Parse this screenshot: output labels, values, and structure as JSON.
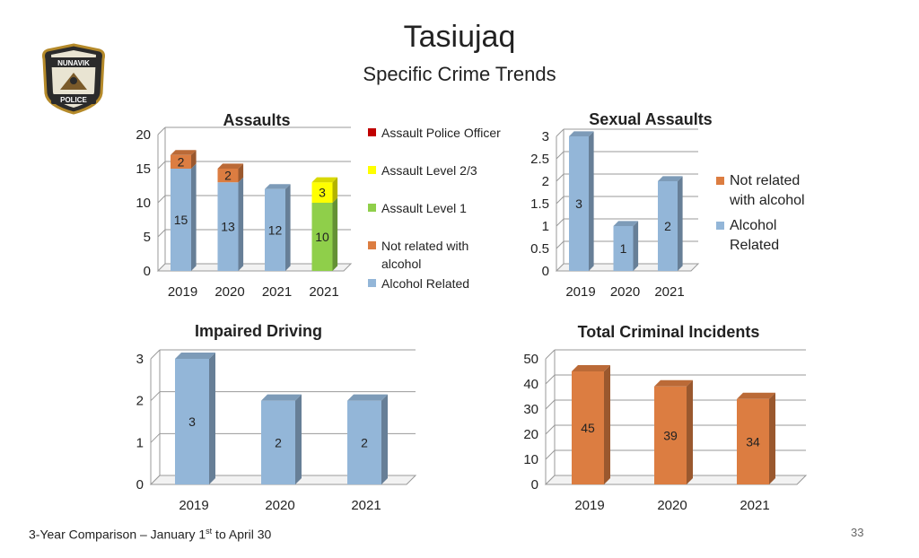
{
  "title": "Tasiujaq",
  "subtitle": "Specific Crime Trends",
  "footer": {
    "prefix": "3-Year Comparison – January 1",
    "sup": "st",
    "suffix": " to April 30"
  },
  "page_number": "33",
  "logo": {
    "top_text": "NUNAVIK",
    "bottom_text": "POLICE",
    "icon": "police-badge-icon"
  },
  "colors": {
    "alcohol_related": "#93B6D8",
    "not_related": "#DC7D41",
    "assault_level1": "#8FCF4A",
    "assault_level23": "#FFFF00",
    "assault_police": "#C00000"
  },
  "chart_data": [
    {
      "id": "assaults",
      "type": "bar",
      "stacked": true,
      "title": "Assaults",
      "categories": [
        "2019",
        "2020",
        "2021",
        "2021"
      ],
      "ylim": [
        0,
        20
      ],
      "yticks": [
        0,
        5,
        10,
        15,
        20
      ],
      "series": [
        {
          "name": "Alcohol Related",
          "color": "#93B6D8",
          "values": [
            15,
            13,
            12,
            0
          ]
        },
        {
          "name": "Not related with alcohol",
          "color": "#DC7D41",
          "values": [
            2,
            2,
            0,
            0
          ]
        },
        {
          "name": "Assault Level 1",
          "color": "#8FCF4A",
          "values": [
            0,
            0,
            0,
            10
          ]
        },
        {
          "name": "Assault Level 2/3",
          "color": "#FFFF00",
          "values": [
            0,
            0,
            0,
            3
          ]
        },
        {
          "name": "Assault Police Officer",
          "color": "#C00000",
          "values": [
            0,
            0,
            0,
            0
          ]
        }
      ],
      "legend": [
        "Assault Police Officer",
        "Assault Level 2/3",
        "Assault Level 1",
        "Not related with alcohol",
        "Alcohol Related"
      ]
    },
    {
      "id": "sexual",
      "type": "bar",
      "stacked": true,
      "title": "Sexual Assaults",
      "categories": [
        "2019",
        "2020",
        "2021"
      ],
      "ylim": [
        0,
        3
      ],
      "yticks": [
        "0",
        "0.5",
        "1",
        "1.5",
        "2",
        "2.5",
        "3"
      ],
      "series": [
        {
          "name": "Alcohol Related",
          "color": "#93B6D8",
          "values": [
            3,
            1,
            2
          ]
        },
        {
          "name": "Not related with alcohol",
          "color": "#DC7D41",
          "values": [
            0,
            0,
            0
          ]
        }
      ],
      "legend": [
        "Not related with alcohol",
        "Alcohol Related"
      ]
    },
    {
      "id": "impaired",
      "type": "bar",
      "title": "Impaired Driving",
      "categories": [
        "2019",
        "2020",
        "2021"
      ],
      "ylim": [
        0,
        3
      ],
      "yticks": [
        0,
        1,
        2,
        3
      ],
      "series": [
        {
          "name": "Impaired Driving",
          "color": "#93B6D8",
          "values": [
            3,
            2,
            2
          ]
        }
      ]
    },
    {
      "id": "total",
      "type": "bar",
      "title": "Total Criminal Incidents",
      "categories": [
        "2019",
        "2020",
        "2021"
      ],
      "ylim": [
        0,
        50
      ],
      "yticks": [
        0,
        10,
        20,
        30,
        40,
        50
      ],
      "series": [
        {
          "name": "Total Criminal Incidents",
          "color": "#DC7D41",
          "values": [
            45,
            39,
            34
          ]
        }
      ]
    }
  ]
}
